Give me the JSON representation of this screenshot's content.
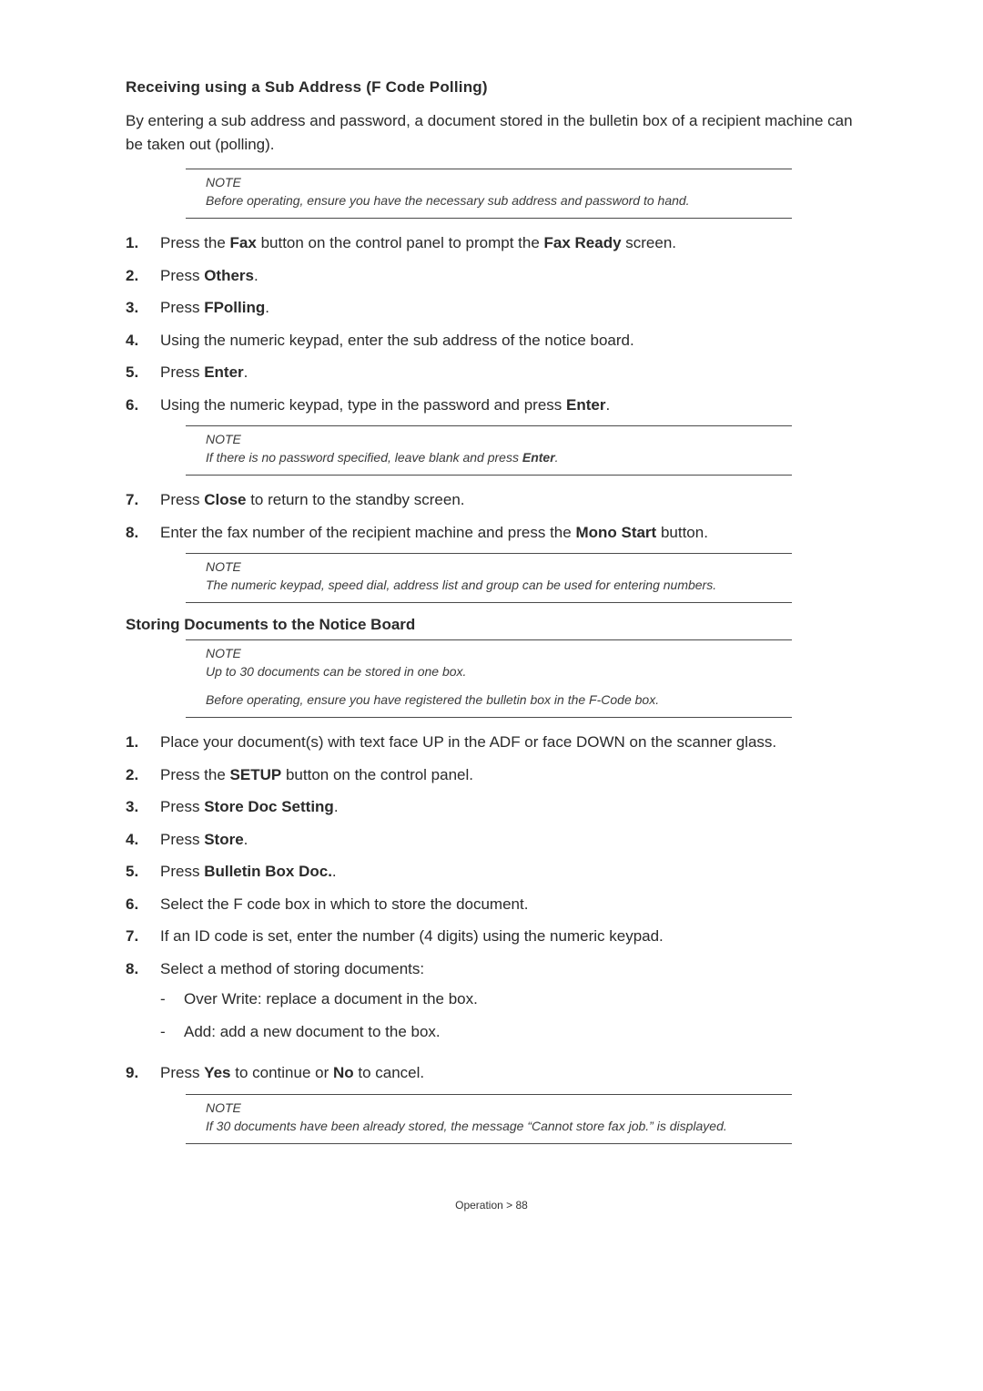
{
  "section1": {
    "heading": "Receiving using a Sub Address (F Code Polling)",
    "intro": "By entering a sub address and password, a document stored in the bulletin box of a recipient machine can be taken out (polling).",
    "note1": {
      "label": "NOTE",
      "text": "Before operating, ensure you have the necessary sub address and password to hand."
    },
    "steps": {
      "s1_a": "Press the ",
      "s1_b": "Fax",
      "s1_c": " button on the control panel to prompt the ",
      "s1_d": "Fax Ready",
      "s1_e": " screen.",
      "s2_a": "Press ",
      "s2_b": "Others",
      "s2_c": ".",
      "s3_a": "Press ",
      "s3_b": "FPolling",
      "s3_c": ".",
      "s4": "Using the numeric keypad, enter the sub address of the notice board.",
      "s5_a": "Press ",
      "s5_b": "Enter",
      "s5_c": ".",
      "s6_a": "Using the numeric keypad, type in the password and press ",
      "s6_b": "Enter",
      "s6_c": "."
    },
    "note2": {
      "label": "NOTE",
      "text_a": "If there is no password specified, leave blank and press ",
      "text_b": "Enter",
      "text_c": "."
    },
    "steps2": {
      "s7_a": "Press ",
      "s7_b": "Close",
      "s7_c": " to return to the standby screen.",
      "s8_a": "Enter the fax number of the recipient machine and press the ",
      "s8_b": "Mono Start",
      "s8_c": " button."
    },
    "note3": {
      "label": "NOTE",
      "text": "The numeric keypad, speed dial, address list and group can be used for entering numbers."
    }
  },
  "section2": {
    "heading": "Storing Documents to the Notice Board",
    "note1": {
      "label": "NOTE",
      "text1": "Up to 30 documents can be stored in one box.",
      "text2": "Before operating, ensure you have registered the bulletin box in the F-Code box."
    },
    "steps": {
      "s1": "Place your document(s) with text face UP in the ADF or face DOWN on the scanner glass.",
      "s2_a": "Press the ",
      "s2_b": "SETUP",
      "s2_c": " button on the control panel.",
      "s3_a": "Press ",
      "s3_b": "Store Doc Setting",
      "s3_c": ".",
      "s4_a": "Press ",
      "s4_b": "Store",
      "s4_c": ".",
      "s5_a": "Press ",
      "s5_b": "Bulletin Box Doc.",
      "s5_c": ".",
      "s6": "Select the F code box in which to store the document.",
      "s7": "If an ID code is set, enter the number (4 digits) using the numeric keypad.",
      "s8": "Select a method of storing documents:",
      "s8_sub1": "Over Write: replace a document in the box.",
      "s8_sub2": "Add: add a new document to the box.",
      "s9_a": "Press ",
      "s9_b": "Yes",
      "s9_c": " to continue or ",
      "s9_d": "No",
      "s9_e": " to cancel."
    },
    "note2": {
      "label": "NOTE",
      "text": "If 30 documents have been already stored, the message “Cannot store fax job.” is displayed."
    }
  },
  "footer": "Operation > 88",
  "nums": {
    "n1": "1.",
    "n2": "2.",
    "n3": "3.",
    "n4": "4.",
    "n5": "5.",
    "n6": "6.",
    "n7": "7.",
    "n8": "8.",
    "n9": "9."
  },
  "dash": "-"
}
